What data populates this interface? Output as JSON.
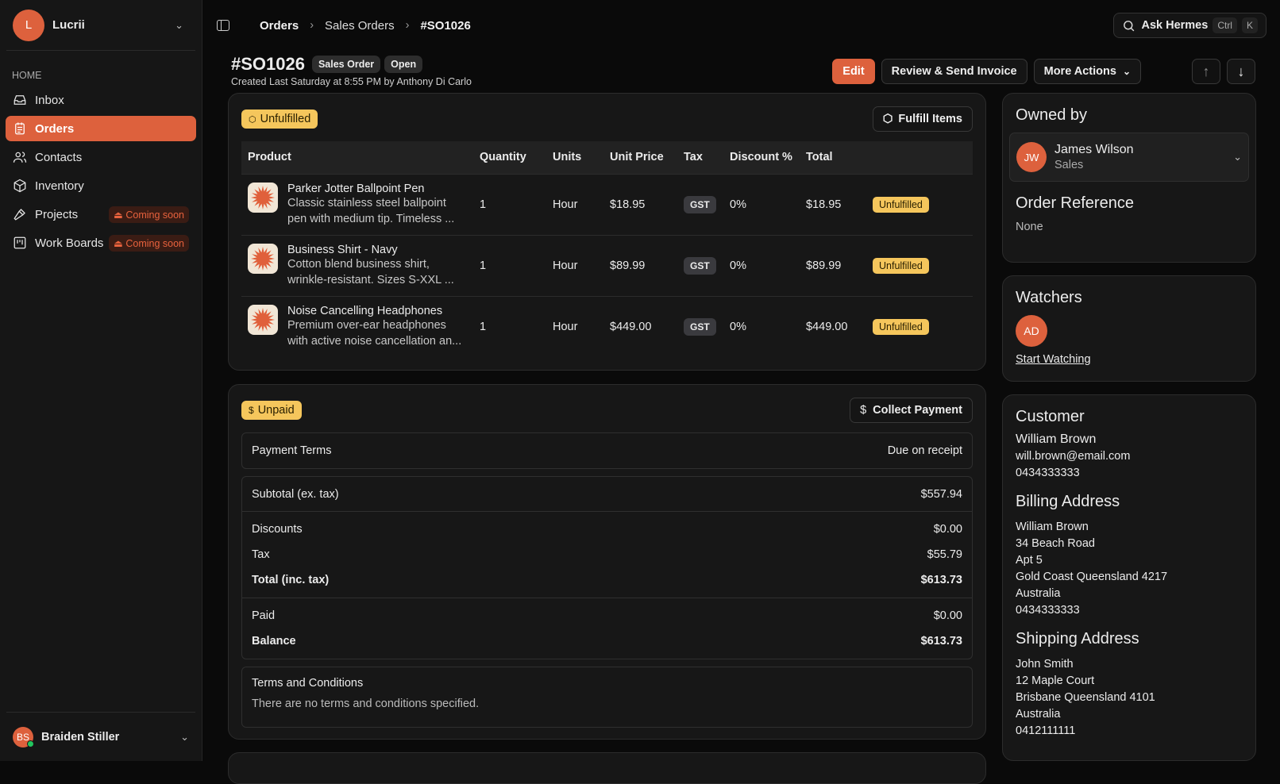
{
  "workspace": {
    "initial": "L",
    "name": "Lucrii"
  },
  "sidebar": {
    "section": "HOME",
    "items": [
      {
        "label": "Inbox",
        "icon": "inbox-icon"
      },
      {
        "label": "Orders",
        "icon": "clipboard-icon",
        "active": true
      },
      {
        "label": "Contacts",
        "icon": "users-icon"
      },
      {
        "label": "Inventory",
        "icon": "package-icon"
      },
      {
        "label": "Projects",
        "icon": "hammer-icon",
        "badge": "Coming soon"
      },
      {
        "label": "Work Boards",
        "icon": "kanban-icon",
        "badge": "Coming soon"
      }
    ],
    "user": {
      "initials": "BS",
      "name": "Braiden Stiller",
      "status": "online"
    }
  },
  "breadcrumb": [
    "Orders",
    "Sales Orders",
    "#SO1026"
  ],
  "search": {
    "label": "Ask Hermes",
    "kbd1": "Ctrl",
    "kbd2": "K"
  },
  "order": {
    "number": "#SO1026",
    "type": "Sales Order",
    "status": "Open",
    "created": "Created Last Saturday at 8:55 PM by Anthony Di Carlo"
  },
  "actions": {
    "edit": "Edit",
    "review": "Review & Send Invoice",
    "more": "More Actions",
    "up": "↑",
    "down": "↓"
  },
  "fulfillment": {
    "status": "Unfulfilled",
    "button": "Fulfill Items",
    "columns": [
      "Product",
      "Quantity",
      "Units",
      "Unit Price",
      "Tax",
      "Discount %",
      "Total"
    ],
    "rows": [
      {
        "name": "Parker Jotter Ballpoint Pen",
        "desc1": "Classic stainless steel ballpoint",
        "desc2": "pen with medium tip. Timeless ...",
        "qty": "1",
        "units": "Hour",
        "price": "$18.95",
        "tax": "GST",
        "discount": "0%",
        "total": "$18.95",
        "status": "Unfulfilled"
      },
      {
        "name": "Business Shirt - Navy",
        "desc1": "Cotton blend business shirt,",
        "desc2": "wrinkle-resistant. Sizes S-XXL ...",
        "qty": "1",
        "units": "Hour",
        "price": "$89.99",
        "tax": "GST",
        "discount": "0%",
        "total": "$89.99",
        "status": "Unfulfilled"
      },
      {
        "name": "Noise Cancelling Headphones",
        "desc1": "Premium over-ear headphones",
        "desc2": "with active noise cancellation an...",
        "qty": "1",
        "units": "Hour",
        "price": "$449.00",
        "tax": "GST",
        "discount": "0%",
        "total": "$449.00",
        "status": "Unfulfilled"
      }
    ]
  },
  "payment": {
    "status": "Unpaid",
    "button": "Collect Payment",
    "terms_label": "Payment Terms",
    "terms_value": "Due on receipt",
    "subtotal_label": "Subtotal (ex. tax)",
    "subtotal": "$557.94",
    "discounts_label": "Discounts",
    "discounts": "$0.00",
    "tax_label": "Tax",
    "tax": "$55.79",
    "total_label": "Total (inc. tax)",
    "total": "$613.73",
    "paid_label": "Paid",
    "paid": "$0.00",
    "balance_label": "Balance",
    "balance": "$613.73",
    "tc_label": "Terms and Conditions",
    "tc_text": "There are no terms and conditions specified."
  },
  "owner": {
    "heading": "Owned by",
    "initials": "JW",
    "name": "James Wilson",
    "role": "Sales",
    "ref_heading": "Order Reference",
    "ref_value": "None"
  },
  "watchers": {
    "heading": "Watchers",
    "initials": "AD",
    "link": "Start Watching"
  },
  "customer": {
    "heading": "Customer",
    "name": "William Brown",
    "email": "will.brown@email.com",
    "phone": "0434333333",
    "billing_heading": "Billing Address",
    "billing": [
      "William Brown",
      "34 Beach Road",
      "Apt 5",
      "Gold Coast Queensland 4217",
      "Australia",
      "0434333333"
    ],
    "shipping_heading": "Shipping Address",
    "shipping": [
      "John Smith",
      "12 Maple Court",
      "Brisbane Queensland 4101",
      "Australia",
      "0412111111"
    ]
  },
  "colors": {
    "accent": "#dd613d",
    "warning": "#f5c65c",
    "background": "#0a0a0a",
    "card": "#171717"
  }
}
